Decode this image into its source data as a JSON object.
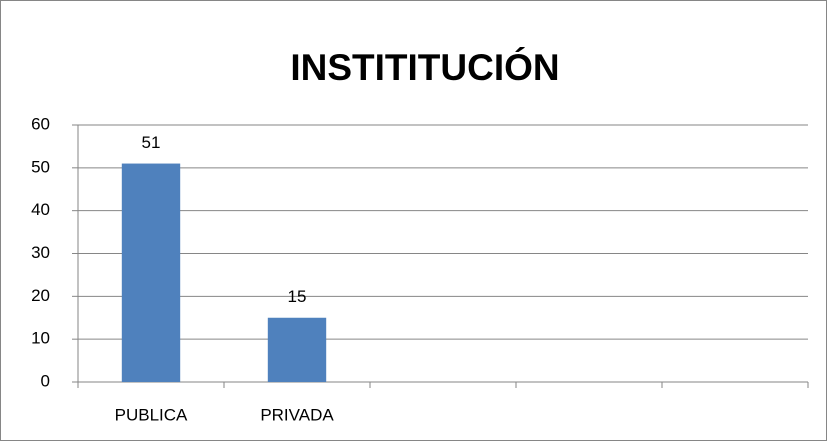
{
  "chart_data": {
    "type": "bar",
    "title": "INSTITITUCIÓN",
    "categories": [
      "PUBLICA",
      "PRIVADA",
      null,
      null,
      null
    ],
    "values": [
      51,
      15,
      null,
      null,
      null
    ],
    "color": "#4f81bd",
    "ylim": [
      0,
      60
    ],
    "yticks": [
      0,
      10,
      20,
      30,
      40,
      50,
      60
    ],
    "grid": true
  }
}
